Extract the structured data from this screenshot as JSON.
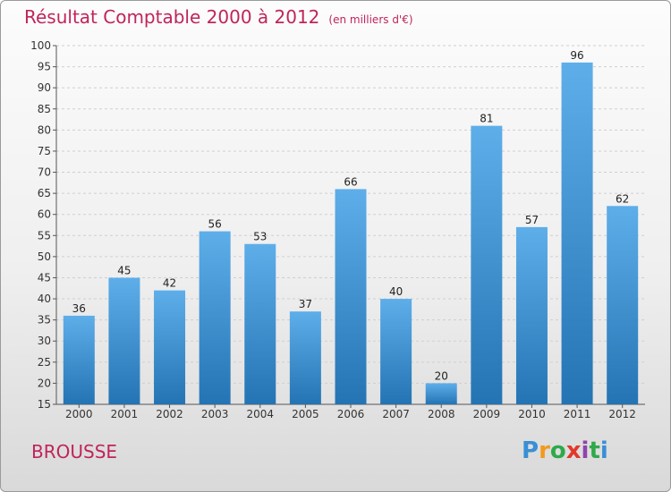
{
  "header": {
    "title": "Résultat Comptable 2000 à 2012",
    "subtitle": "(en milliers d'€)"
  },
  "footer": {
    "commune": "BROUSSE",
    "logo_letters": [
      "P",
      "r",
      "o",
      "x",
      "i",
      "t",
      "i"
    ]
  },
  "colors": {
    "title": "#c0245c",
    "bar_top": "#5eaeea",
    "bar_bottom": "#2474b4",
    "grid": "#cfcfcf"
  },
  "chart_data": {
    "type": "bar",
    "categories": [
      "2000",
      "2001",
      "2002",
      "2003",
      "2004",
      "2005",
      "2006",
      "2007",
      "2008",
      "2009",
      "2010",
      "2011",
      "2012"
    ],
    "values": [
      36,
      45,
      42,
      56,
      53,
      37,
      66,
      40,
      20,
      81,
      57,
      96,
      62
    ],
    "ylim": [
      15,
      100
    ],
    "yticks": [
      15,
      20,
      25,
      30,
      35,
      40,
      45,
      50,
      55,
      60,
      65,
      70,
      75,
      80,
      85,
      90,
      95,
      100
    ],
    "grid": "horizontal dashed",
    "data_labels": true
  }
}
